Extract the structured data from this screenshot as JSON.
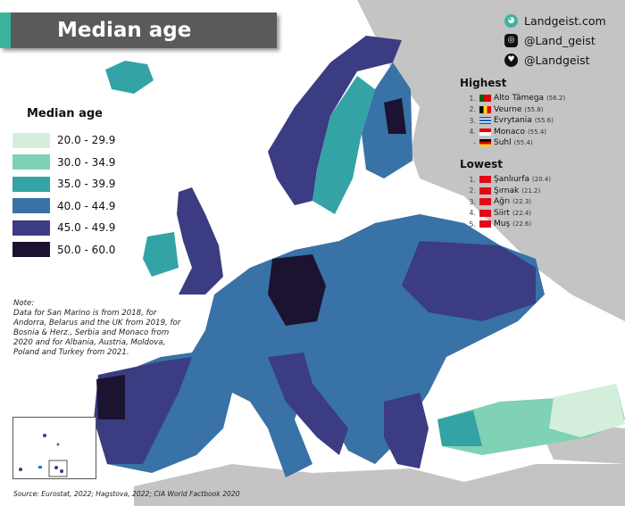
{
  "title": "Median age",
  "social": [
    {
      "icon": "globe-icon",
      "text": "Landgeist.com"
    },
    {
      "icon": "instagram-icon",
      "text": "@Land_geist"
    },
    {
      "icon": "twitter-icon",
      "text": "@Landgeist"
    }
  ],
  "legend": {
    "title": "Median age",
    "items": [
      {
        "label": "20.0 - 29.9",
        "color": "#d3efdc"
      },
      {
        "label": "30.0 - 34.9",
        "color": "#7fd2b3"
      },
      {
        "label": "35.0 - 39.9",
        "color": "#34a3a6"
      },
      {
        "label": "40.0 - 44.9",
        "color": "#3872a7"
      },
      {
        "label": "45.0 - 49.9",
        "color": "#3b3c82"
      },
      {
        "label": "50.0 - 60.0",
        "color": "#1c1330"
      }
    ]
  },
  "highest": {
    "title": "Highest",
    "items": [
      {
        "rank": "1.",
        "name": "Alto Tâmega",
        "value": "(56.2)",
        "flag": "portugal"
      },
      {
        "rank": "2.",
        "name": "Veurne",
        "value": "(55.8)",
        "flag": "belgium"
      },
      {
        "rank": "3.",
        "name": "Evrytania",
        "value": "(55.6)",
        "flag": "greece"
      },
      {
        "rank": "4.",
        "name": "Monaco",
        "value": "(55.4)",
        "flag": "monaco"
      },
      {
        "rank": "-",
        "name": "Suhl",
        "value": "(55.4)",
        "flag": "germany"
      }
    ]
  },
  "lowest": {
    "title": "Lowest",
    "items": [
      {
        "rank": "1.",
        "name": "Şanlıurfa",
        "value": "(20.4)",
        "flag": "turkey"
      },
      {
        "rank": "2.",
        "name": "Şırnak",
        "value": "(21.2)",
        "flag": "turkey"
      },
      {
        "rank": "3.",
        "name": "Ağrı",
        "value": "(22.3)",
        "flag": "turkey"
      },
      {
        "rank": "4.",
        "name": "Siirt",
        "value": "(22.4)",
        "flag": "turkey"
      },
      {
        "rank": "5.",
        "name": "Muş",
        "value": "(22.6)",
        "flag": "turkey"
      }
    ]
  },
  "note": {
    "heading": "Note:",
    "text": "Data for San Marino is from 2018, for Andorra, Belarus and the UK from 2019, for Bosnia & Herz., Serbia and Monaco from 2020 and for Albania, Austria, Moldova, Poland and Turkey from 2021."
  },
  "source": "Source: Eurostat, 2022; Hagstova, 2022; CIA World Factbook 2020",
  "colors": {
    "no_data_land": "#c4c4c4",
    "title_bar": "#5a5a5a",
    "accent": "#3bb39a"
  }
}
